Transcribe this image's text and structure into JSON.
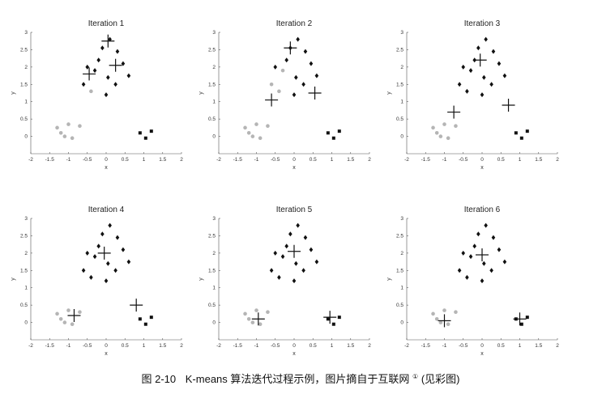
{
  "chart_data": [
    {
      "type": "scatter",
      "title": "Iteration 1",
      "xlabel": "x",
      "ylabel": "y",
      "xlim": [
        -2,
        2
      ],
      "ylim": [
        -0.5,
        3
      ],
      "xticks": [
        "-2",
        "-1.5",
        "-1",
        "-0.5",
        "0",
        "0.5",
        "1",
        "1.5",
        "2"
      ],
      "yticks": [
        "0",
        "0.5",
        "1",
        "1.5",
        "2",
        "2.5",
        "3"
      ],
      "assign": [
        0,
        0,
        0,
        0,
        0,
        0,
        1,
        1,
        1,
        1,
        1,
        1,
        1,
        0,
        1,
        1,
        1,
        1,
        1,
        2,
        2,
        2
      ],
      "centroids": [
        [
          -0.45,
          1.8
        ],
        [
          0.05,
          2.75
        ],
        [
          0.25,
          2.05
        ]
      ]
    },
    {
      "type": "scatter",
      "title": "Iteration 2",
      "xlabel": "x",
      "ylabel": "y",
      "xlim": [
        -2,
        2
      ],
      "ylim": [
        -0.5,
        3
      ],
      "xticks": [
        "-2",
        "-1.5",
        "-1",
        "-0.5",
        "0",
        "0.5",
        "1",
        "1.5",
        "2"
      ],
      "yticks": [
        "0",
        "0.5",
        "1",
        "1.5",
        "2",
        "2.5",
        "3"
      ],
      "assign": [
        0,
        0,
        0,
        0,
        0,
        0,
        0,
        0,
        1,
        1,
        1,
        1,
        1,
        0,
        1,
        1,
        1,
        1,
        1,
        2,
        2,
        2
      ],
      "centroids": [
        [
          -0.6,
          1.05
        ],
        [
          -0.1,
          2.55
        ],
        [
          0.55,
          1.25
        ]
      ]
    },
    {
      "type": "scatter",
      "title": "Iteration 3",
      "xlabel": "x",
      "ylabel": "y",
      "xlim": [
        -2,
        2
      ],
      "ylim": [
        -0.5,
        3
      ],
      "xticks": [
        "-2",
        "-1.5",
        "-1",
        "-0.5",
        "0",
        "0.5",
        "1",
        "1.5",
        "2"
      ],
      "yticks": [
        "0",
        "0.5",
        "1",
        "1.5",
        "2",
        "2.5",
        "3"
      ],
      "assign": [
        0,
        0,
        0,
        0,
        0,
        0,
        1,
        1,
        1,
        1,
        1,
        1,
        1,
        1,
        1,
        1,
        1,
        1,
        1,
        2,
        2,
        2
      ],
      "centroids": [
        [
          -0.75,
          0.7
        ],
        [
          -0.05,
          2.2
        ],
        [
          0.7,
          0.9
        ]
      ]
    },
    {
      "type": "scatter",
      "title": "Iteration 4",
      "xlabel": "x",
      "ylabel": "y",
      "xlim": [
        -2,
        2
      ],
      "ylim": [
        -0.5,
        3
      ],
      "xticks": [
        "-2",
        "-1.5",
        "-1",
        "-0.5",
        "0",
        "0.5",
        "1",
        "1.5",
        "2"
      ],
      "yticks": [
        "0",
        "0.5",
        "1",
        "1.5",
        "2",
        "2.5",
        "3"
      ],
      "assign": [
        0,
        0,
        0,
        0,
        0,
        0,
        1,
        1,
        1,
        1,
        1,
        1,
        1,
        1,
        1,
        1,
        1,
        1,
        1,
        2,
        2,
        2
      ],
      "centroids": [
        [
          -0.85,
          0.2
        ],
        [
          -0.05,
          2.0
        ],
        [
          0.8,
          0.5
        ]
      ]
    },
    {
      "type": "scatter",
      "title": "Iteration 5",
      "xlabel": "x",
      "ylabel": "y",
      "xlim": [
        -2,
        2
      ],
      "ylim": [
        -0.5,
        3
      ],
      "xticks": [
        "-2",
        "-1.5",
        "-1",
        "-0.5",
        "0",
        "0.5",
        "1",
        "1.5",
        "2"
      ],
      "yticks": [
        "0",
        "0.5",
        "1",
        "1.5",
        "2",
        "2.5",
        "3"
      ],
      "assign": [
        0,
        0,
        0,
        0,
        0,
        0,
        1,
        1,
        1,
        1,
        1,
        1,
        1,
        1,
        1,
        1,
        1,
        1,
        1,
        2,
        2,
        2
      ],
      "centroids": [
        [
          -0.95,
          0.1
        ],
        [
          0.0,
          2.05
        ],
        [
          0.95,
          0.15
        ]
      ]
    },
    {
      "type": "scatter",
      "title": "Iteration 6",
      "xlabel": "x",
      "ylabel": "y",
      "xlim": [
        -2,
        2
      ],
      "ylim": [
        -0.5,
        3
      ],
      "xticks": [
        "-2",
        "-1.5",
        "-1",
        "-0.5",
        "0",
        "0.5",
        "1",
        "1.5",
        "2"
      ],
      "yticks": [
        "0",
        "0.5",
        "1",
        "1.5",
        "2",
        "2.5",
        "3"
      ],
      "assign": [
        0,
        0,
        0,
        0,
        0,
        0,
        1,
        1,
        1,
        1,
        1,
        1,
        1,
        1,
        1,
        1,
        1,
        1,
        1,
        2,
        2,
        2
      ],
      "centroids": [
        [
          -1.0,
          0.05
        ],
        [
          0.0,
          1.95
        ],
        [
          1.0,
          0.1
        ]
      ]
    }
  ],
  "points": [
    [
      -1.2,
      0.1
    ],
    [
      -1.1,
      0.0
    ],
    [
      -0.9,
      -0.05
    ],
    [
      -1.3,
      0.25
    ],
    [
      -0.7,
      0.3
    ],
    [
      -1.0,
      0.35
    ],
    [
      -0.6,
      1.5
    ],
    [
      -0.3,
      1.9
    ],
    [
      -0.2,
      2.2
    ],
    [
      0.1,
      2.8
    ],
    [
      0.25,
      1.5
    ],
    [
      0.05,
      1.7
    ],
    [
      -0.5,
      2.0
    ],
    [
      -0.4,
      1.3
    ],
    [
      0.3,
      2.45
    ],
    [
      0.45,
      2.1
    ],
    [
      -0.1,
      2.55
    ],
    [
      0.6,
      1.75
    ],
    [
      0.0,
      1.2
    ],
    [
      0.9,
      0.1
    ],
    [
      1.05,
      -0.05
    ],
    [
      1.2,
      0.15
    ]
  ],
  "colors": {
    "cluster_a": "#b5b5b5",
    "cluster_b": "#111111",
    "cluster_c": "#111111",
    "centroid": "#111111"
  },
  "caption": {
    "fig": "图 2-10",
    "text": "K-means 算法迭代过程示例，图片摘自于互联网",
    "sup": "①",
    "tail": "(见彩图)"
  }
}
